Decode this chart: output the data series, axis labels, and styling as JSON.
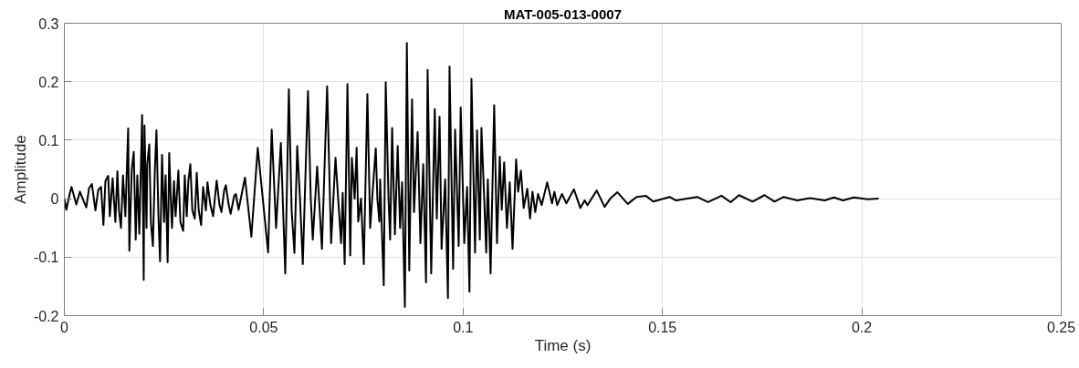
{
  "chart_data": {
    "type": "line",
    "title": "MAT-005-013-0007",
    "xlabel": "Time (s)",
    "ylabel": "Amplitude",
    "x": [
      0,
      0.0005,
      0.0014,
      0.0018,
      0.003,
      0.0039,
      0.0046,
      0.0055,
      0.0062,
      0.0069,
      0.0078,
      0.0085,
      0.0092,
      0.0098,
      0.0103,
      0.011,
      0.0114,
      0.0121,
      0.0128,
      0.0133,
      0.0137,
      0.0142,
      0.0147,
      0.0153,
      0.016,
      0.0163,
      0.0169,
      0.0174,
      0.0179,
      0.0183,
      0.0188,
      0.0195,
      0.0199,
      0.0201,
      0.0206,
      0.0208,
      0.0213,
      0.0217,
      0.0222,
      0.0227,
      0.0231,
      0.0236,
      0.024,
      0.0245,
      0.025,
      0.0254,
      0.0259,
      0.0263,
      0.0268,
      0.027,
      0.0275,
      0.0279,
      0.0286,
      0.0291,
      0.0298,
      0.0302,
      0.0307,
      0.0311,
      0.0316,
      0.0321,
      0.0327,
      0.0332,
      0.0337,
      0.0343,
      0.0348,
      0.0355,
      0.0359,
      0.0366,
      0.0373,
      0.0382,
      0.0389,
      0.0394,
      0.0401,
      0.0405,
      0.0412,
      0.0417,
      0.0426,
      0.043,
      0.0437,
      0.0453,
      0.0469,
      0.0485,
      0.0511,
      0.052,
      0.0531,
      0.0543,
      0.0554,
      0.0563,
      0.057,
      0.0577,
      0.0584,
      0.0591,
      0.0598,
      0.0611,
      0.0618,
      0.0623,
      0.0634,
      0.0646,
      0.0659,
      0.0669,
      0.068,
      0.0694,
      0.0698,
      0.0703,
      0.071,
      0.0717,
      0.0721,
      0.0728,
      0.0733,
      0.0737,
      0.0744,
      0.0751,
      0.076,
      0.0767,
      0.0774,
      0.0781,
      0.0785,
      0.079,
      0.0792,
      0.0801,
      0.0806,
      0.0813,
      0.0817,
      0.0822,
      0.0829,
      0.0836,
      0.0842,
      0.0847,
      0.0854,
      0.0859,
      0.0865,
      0.0872,
      0.0877,
      0.0886,
      0.0893,
      0.09,
      0.0907,
      0.0911,
      0.092,
      0.0929,
      0.0934,
      0.0941,
      0.0946,
      0.0955,
      0.0962,
      0.0966,
      0.0975,
      0.098,
      0.0989,
      0.0994,
      0.1003,
      0.101,
      0.1016,
      0.1021,
      0.103,
      0.1035,
      0.1042,
      0.1046,
      0.1053,
      0.1058,
      0.1062,
      0.1069,
      0.1078,
      0.1085,
      0.1092,
      0.1097,
      0.1103,
      0.111,
      0.1117,
      0.1124,
      0.1133,
      0.1138,
      0.1145,
      0.1152,
      0.1161,
      0.1168,
      0.1174,
      0.1181,
      0.1188,
      0.1197,
      0.1211,
      0.1223,
      0.1229,
      0.1236,
      0.1248,
      0.1259,
      0.1278,
      0.1294,
      0.1305,
      0.1312,
      0.1335,
      0.1355,
      0.1369,
      0.1387,
      0.1413,
      0.1435,
      0.1458,
      0.1477,
      0.1518,
      0.1534,
      0.1587,
      0.1614,
      0.1648,
      0.1671,
      0.1692,
      0.1726,
      0.1756,
      0.1781,
      0.1804,
      0.1838,
      0.187,
      0.1907,
      0.193,
      0.1953,
      0.198,
      0.2015,
      0.2042
    ],
    "series": [
      {
        "color": "#000000",
        "values": [
          0,
          -0.019,
          0.01,
          0.02,
          -0.01,
          0.012,
          0.0,
          -0.015,
          0.018,
          0.025,
          -0.02,
          0.015,
          0.02,
          -0.045,
          0.03,
          0.039,
          -0.03,
          0.035,
          -0.04,
          0.047,
          -0.02,
          -0.05,
          0.04,
          -0.03,
          0.12,
          -0.089,
          0.05,
          0.08,
          -0.07,
          0.04,
          -0.06,
          0.143,
          -0.139,
          0.125,
          -0.05,
          0.06,
          0.093,
          -0.04,
          -0.081,
          0.05,
          0.117,
          -0.03,
          -0.107,
          0.075,
          -0.04,
          0.04,
          -0.109,
          0.078,
          -0.02,
          -0.05,
          0.03,
          -0.03,
          0.048,
          -0.04,
          -0.055,
          0.04,
          -0.03,
          0.03,
          0.059,
          -0.02,
          -0.034,
          0.044,
          -0.02,
          -0.045,
          0.02,
          -0.02,
          0.028,
          -0.01,
          -0.03,
          0.031,
          -0.01,
          -0.023,
          0.015,
          0.023,
          -0.01,
          -0.026,
          0.005,
          0.008,
          -0.019,
          0.036,
          -0.065,
          0.087,
          -0.092,
          0.118,
          -0.05,
          0.095,
          -0.128,
          0.187,
          -0.02,
          -0.093,
          0.09,
          0.0,
          -0.112,
          0.184,
          0.0,
          -0.07,
          0.055,
          -0.086,
          0.192,
          -0.076,
          0.07,
          -0.076,
          0.01,
          -0.112,
          0.196,
          -0.097,
          0.07,
          0.0,
          0.087,
          -0.039,
          0.0,
          -0.112,
          0.179,
          -0.05,
          0.02,
          0.086,
          0.0,
          -0.039,
          0.033,
          -0.148,
          0.199,
          0.0,
          -0.07,
          0.121,
          -0.061,
          0.09,
          -0.05,
          0.028,
          -0.185,
          0.266,
          -0.123,
          0.17,
          -0.023,
          0.114,
          -0.076,
          0.059,
          -0.143,
          0.22,
          -0.128,
          0.153,
          -0.034,
          0.14,
          -0.086,
          0.033,
          -0.17,
          0.226,
          -0.12,
          0.118,
          -0.081,
          0.156,
          -0.076,
          0.02,
          -0.159,
          0.205,
          -0.092,
          0.117,
          -0.07,
          0.121,
          0.0,
          -0.092,
          0.033,
          -0.128,
          0.16,
          -0.076,
          0.072,
          -0.019,
          0.062,
          -0.05,
          0.028,
          -0.086,
          0.067,
          0.012,
          0.048,
          -0.016,
          0.017,
          -0.034,
          0.012,
          -0.023,
          0.008,
          -0.011,
          0.028,
          -0.008,
          0.012,
          -0.011,
          0.008,
          -0.008,
          0.016,
          -0.016,
          -0.003,
          -0.011,
          0.014,
          -0.014,
          0.0,
          0.011,
          -0.009,
          0.003,
          0.005,
          -0.005,
          0.003,
          -0.003,
          0.003,
          -0.006,
          0.005,
          -0.006,
          0.006,
          -0.005,
          0.006,
          -0.005,
          0.003,
          -0.003,
          0.001,
          -0.003,
          0.002,
          -0.003,
          0.002,
          -0.001,
          0.0
        ]
      }
    ],
    "xlim": [
      0,
      0.25
    ],
    "ylim": [
      -0.2,
      0.3
    ],
    "xticks": [
      0,
      0.05,
      0.1,
      0.15,
      0.2,
      0.25
    ],
    "yticks": [
      -0.2,
      -0.1,
      0,
      0.1,
      0.2,
      0.3
    ],
    "grid": true,
    "line_style": "solid"
  }
}
